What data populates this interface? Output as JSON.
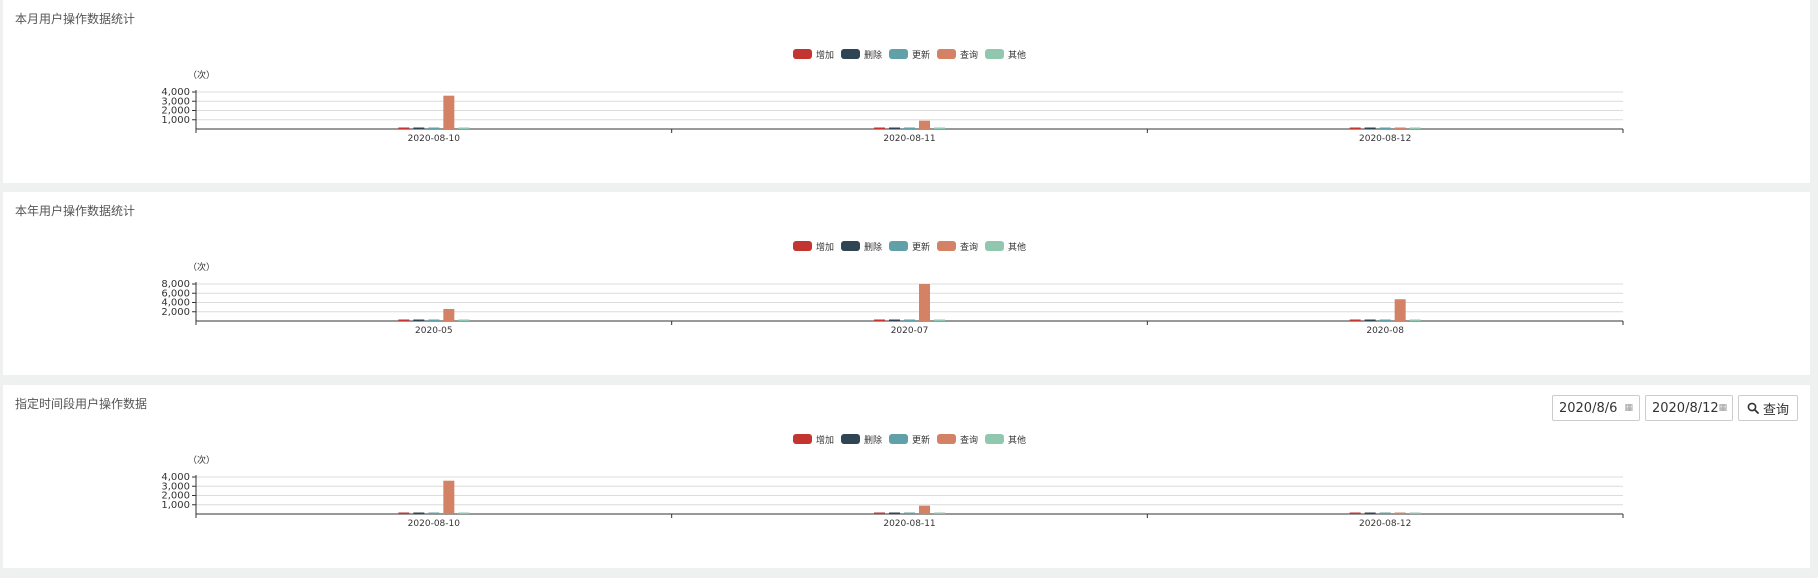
{
  "legend": [
    {
      "name": "增加",
      "color": "#c23531"
    },
    {
      "name": "删除",
      "color": "#2f4554"
    },
    {
      "name": "更新",
      "color": "#61a0a8"
    },
    {
      "name": "查询",
      "color": "#d48265"
    },
    {
      "name": "其他",
      "color": "#91c7ae"
    }
  ],
  "panels": [
    {
      "title": "本月用户操作数据统计"
    },
    {
      "title": "本年用户操作数据统计"
    },
    {
      "title": "指定时间段用户操作数据"
    }
  ],
  "controls": {
    "start_date": "2020/8/6",
    "end_date": "2020/8/12",
    "search_label": "查询",
    "calendar_icon": "calendar-icon",
    "search_icon": "search-icon"
  },
  "chart_data": [
    {
      "type": "bar",
      "title": "本月用户操作数据统计",
      "ylabel": "（次）",
      "categories": [
        "2020-08-10",
        "2020-08-11",
        "2020-08-12"
      ],
      "yticks": [
        "1,000",
        "2,000",
        "3,000",
        "4,000"
      ],
      "ylim": [
        0,
        4000
      ],
      "legend_position": "top-center",
      "series": [
        {
          "name": "增加",
          "values": [
            80,
            30,
            60
          ]
        },
        {
          "name": "删除",
          "values": [
            60,
            30,
            40
          ]
        },
        {
          "name": "更新",
          "values": [
            70,
            30,
            50
          ]
        },
        {
          "name": "查询",
          "values": [
            3600,
            900,
            60
          ]
        },
        {
          "name": "其他",
          "values": [
            120,
            30,
            100
          ]
        }
      ]
    },
    {
      "type": "bar",
      "title": "本年用户操作数据统计",
      "ylabel": "（次）",
      "categories": [
        "2020-05",
        "2020-07",
        "2020-08"
      ],
      "yticks": [
        "2,000",
        "4,000",
        "6,000",
        "8,000"
      ],
      "ylim": [
        0,
        8000
      ],
      "legend_position": "top-center",
      "series": [
        {
          "name": "增加",
          "values": [
            150,
            150,
            150
          ]
        },
        {
          "name": "删除",
          "values": [
            100,
            100,
            100
          ]
        },
        {
          "name": "更新",
          "values": [
            150,
            150,
            100
          ]
        },
        {
          "name": "查询",
          "values": [
            2600,
            8000,
            4700
          ]
        },
        {
          "name": "其他",
          "values": [
            250,
            200,
            150
          ]
        }
      ]
    },
    {
      "type": "bar",
      "title": "指定时间段用户操作数据",
      "ylabel": "（次）",
      "categories": [
        "2020-08-10",
        "2020-08-11",
        "2020-08-12"
      ],
      "yticks": [
        "1,000",
        "2,000",
        "3,000",
        "4,000"
      ],
      "ylim": [
        0,
        4000
      ],
      "legend_position": "top-center",
      "series": [
        {
          "name": "增加",
          "values": [
            80,
            30,
            60
          ]
        },
        {
          "name": "删除",
          "values": [
            60,
            30,
            40
          ]
        },
        {
          "name": "更新",
          "values": [
            70,
            30,
            50
          ]
        },
        {
          "name": "查询",
          "values": [
            3600,
            900,
            60
          ]
        },
        {
          "name": "其他",
          "values": [
            120,
            30,
            100
          ]
        }
      ]
    }
  ]
}
